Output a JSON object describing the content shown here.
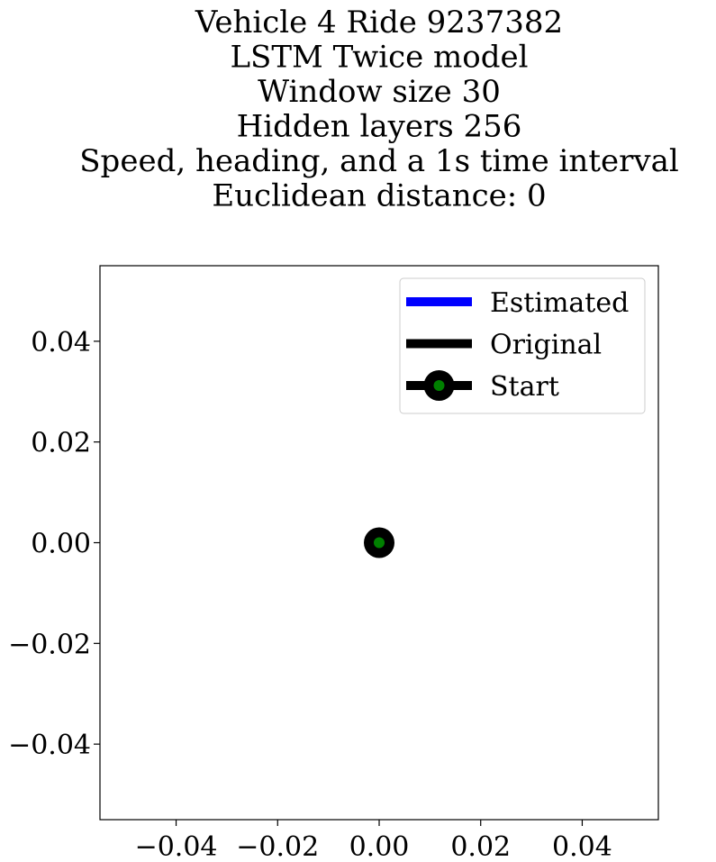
{
  "chart_data": {
    "type": "line",
    "title_lines": [
      "Vehicle 4 Ride 9237382",
      "LSTM Twice model",
      "Window size 30",
      "Hidden layers 256",
      "Speed, heading, and a 1s time interval",
      "Euclidean distance: 0"
    ],
    "xlim": [
      -0.055,
      0.055
    ],
    "ylim": [
      -0.055,
      0.055
    ],
    "x_ticks": [
      -0.04,
      -0.02,
      0.0,
      0.02,
      0.04
    ],
    "x_tick_labels": [
      "−0.04",
      "−0.02",
      "0.00",
      "0.02",
      "0.04"
    ],
    "y_ticks": [
      0.04,
      0.02,
      0.0,
      -0.02,
      -0.04
    ],
    "y_tick_labels": [
      "0.04",
      "0.02",
      "0.00",
      "−0.02",
      "−0.04"
    ],
    "grid": false,
    "legend_position": "top-right",
    "series": [
      {
        "name": "Estimated",
        "color": "#0000ff",
        "x": [
          0
        ],
        "y": [
          0
        ]
      },
      {
        "name": "Original",
        "color": "#000000",
        "x": [
          0
        ],
        "y": [
          0
        ]
      }
    ],
    "start_point": {
      "name": "Start",
      "x": 0,
      "y": 0,
      "outer_color": "#000000",
      "inner_color": "#008000"
    }
  }
}
